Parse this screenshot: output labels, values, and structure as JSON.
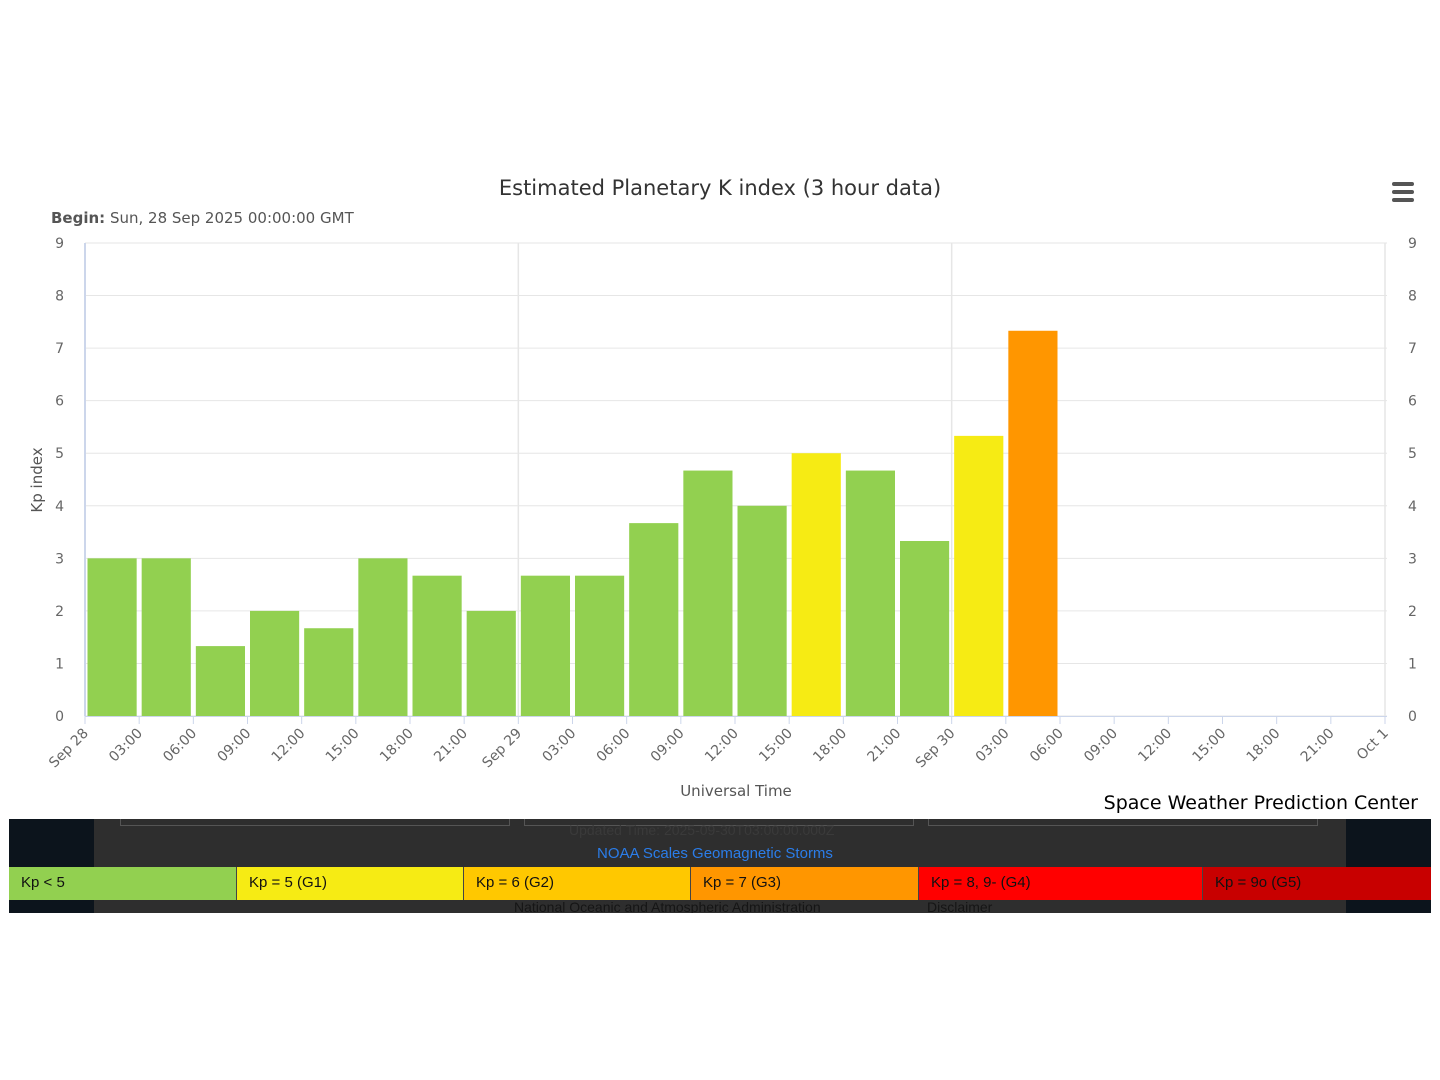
{
  "chart_data": {
    "type": "bar",
    "title": "Estimated Planetary K index (3 hour data)",
    "subtitle_label": "Begin:",
    "subtitle_value": "Sun, 28 Sep 2025 00:00:00 GMT",
    "xlabel": "Universal Time",
    "ylabel": "Kp index",
    "ylim": [
      0,
      9
    ],
    "y_ticks": [
      "0",
      "1",
      "2",
      "3",
      "4",
      "5",
      "6",
      "7",
      "8",
      "9"
    ],
    "x_tick_labels": [
      "Sep 28",
      "03:00",
      "06:00",
      "09:00",
      "12:00",
      "15:00",
      "18:00",
      "21:00",
      "Sep 29",
      "03:00",
      "06:00",
      "09:00",
      "12:00",
      "15:00",
      "18:00",
      "21:00",
      "Sep 30",
      "03:00",
      "06:00",
      "09:00",
      "12:00",
      "15:00",
      "18:00",
      "21:00",
      "Oct 1"
    ],
    "x_start": "2025-09-28T00:00Z",
    "bar_interval_hours": 3,
    "values": [
      3.0,
      3.0,
      1.33,
      2.0,
      1.67,
      3.0,
      2.67,
      2.0,
      2.67,
      2.67,
      3.67,
      4.67,
      4.0,
      5.0,
      4.67,
      3.33,
      5.33,
      7.33
    ],
    "grid": true,
    "color_scale": [
      {
        "min": 0,
        "max": 5,
        "color": "#92d050"
      },
      {
        "min": 5,
        "max": 6,
        "color": "#f6eb14"
      },
      {
        "min": 6,
        "max": 7,
        "color": "#ffc800"
      },
      {
        "min": 7,
        "max": 8,
        "color": "#ff9600"
      },
      {
        "min": 8,
        "max": 9,
        "color": "#ff0000"
      },
      {
        "min": 9,
        "max": 10,
        "color": "#c80000"
      }
    ]
  },
  "credit": "Space Weather Prediction Center",
  "footer": {
    "updated": "Updated Time: 2025-09-30T03:00:00.000Z",
    "link": "NOAA Scales Geomagnetic Storms",
    "agency": "National Oceanic and Atmospheric Administration",
    "disclaimer": "Disclaimer"
  },
  "scale_legend": [
    {
      "label": "Kp < 5",
      "color": "#92d050"
    },
    {
      "label": "Kp = 5 (G1)",
      "color": "#f6eb14"
    },
    {
      "label": "Kp = 6 (G2)",
      "color": "#ffc800"
    },
    {
      "label": "Kp = 7 (G3)",
      "color": "#ff9600"
    },
    {
      "label": "Kp = 8, 9- (G4)",
      "color": "#ff0000"
    },
    {
      "label": "Kp = 9o (G5)",
      "color": "#c80000"
    }
  ]
}
